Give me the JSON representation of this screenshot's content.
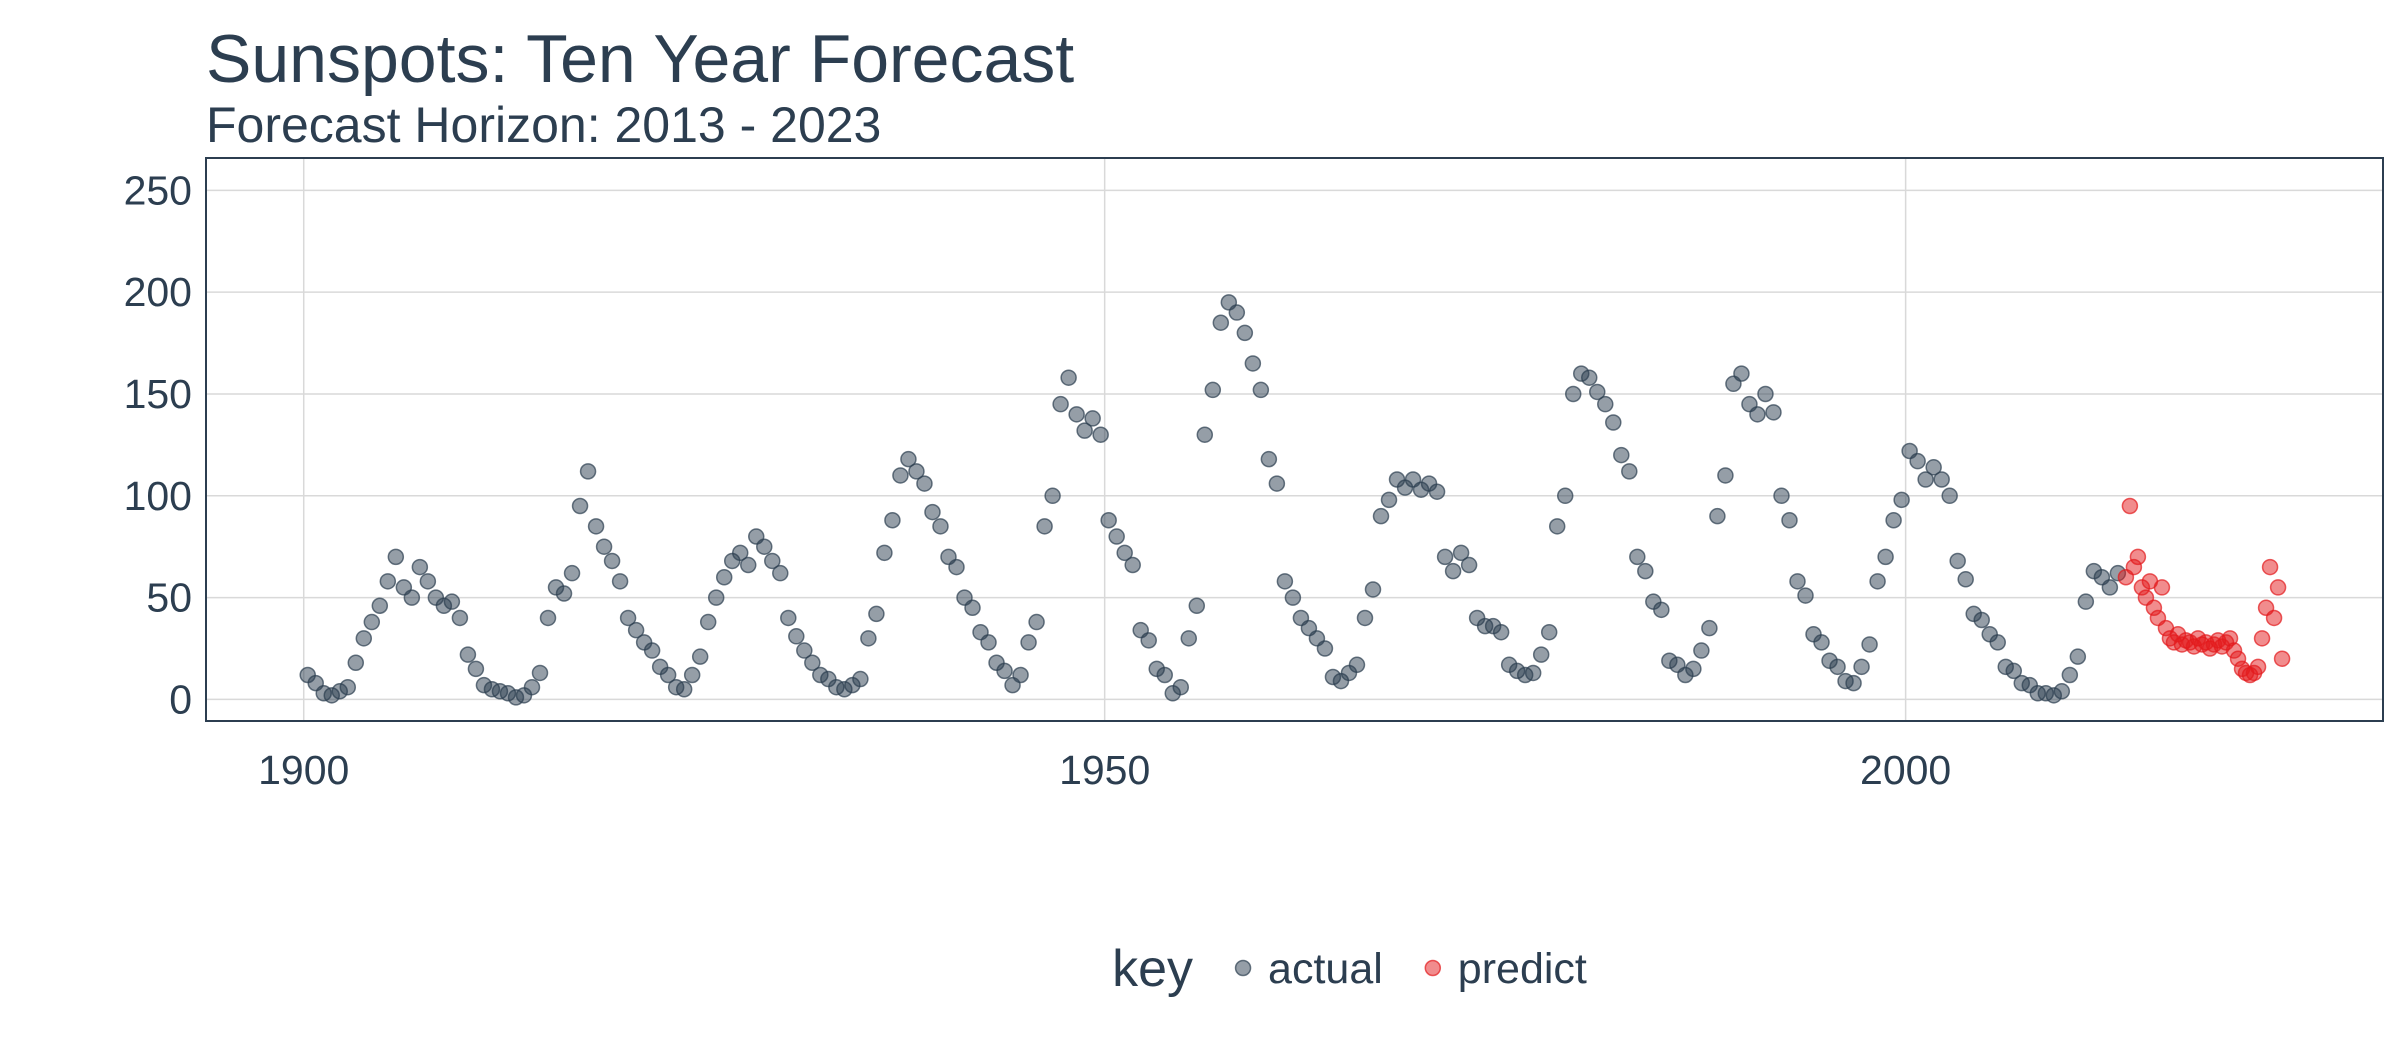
{
  "chart_data": {
    "type": "scatter",
    "title": "Sunspots: Ten Year Forecast",
    "subtitle": "Forecast Horizon: 2013 - 2023",
    "legend_title": "key",
    "legend_position": "bottom",
    "grid": true,
    "xlim": [
      1893.9,
      2029.8
    ],
    "ylim": [
      -10.6,
      265.9
    ],
    "xticks": [
      1900,
      1950,
      2000
    ],
    "yticks": [
      0,
      50,
      100,
      150,
      200,
      250
    ],
    "series": [
      {
        "name": "actual",
        "color": "#2c3e50",
        "x": [
          1900.25,
          1900.75,
          1901.25,
          1901.75,
          1902.25,
          1902.75,
          1903.25,
          1903.75,
          1904.25,
          1904.75,
          1905.25,
          1905.75,
          1906.25,
          1906.75,
          1907.25,
          1907.75,
          1908.25,
          1908.75,
          1909.25,
          1909.75,
          1910.25,
          1910.75,
          1911.25,
          1911.75,
          1912.25,
          1912.75,
          1913.25,
          1913.75,
          1914.25,
          1914.75,
          1915.25,
          1915.75,
          1916.25,
          1916.75,
          1917.25,
          1917.75,
          1918.25,
          1918.75,
          1919.25,
          1919.75,
          1920.25,
          1920.75,
          1921.25,
          1921.75,
          1922.25,
          1922.75,
          1923.25,
          1923.75,
          1924.25,
          1924.75,
          1925.25,
          1925.75,
          1926.25,
          1926.75,
          1927.25,
          1927.75,
          1928.25,
          1928.75,
          1929.25,
          1929.75,
          1930.25,
          1930.75,
          1931.25,
          1931.75,
          1932.25,
          1932.75,
          1933.25,
          1933.75,
          1934.25,
          1934.75,
          1935.25,
          1935.75,
          1936.25,
          1936.75,
          1937.25,
          1937.75,
          1938.25,
          1938.75,
          1939.25,
          1939.75,
          1940.25,
          1940.75,
          1941.25,
          1941.75,
          1942.25,
          1942.75,
          1943.25,
          1943.75,
          1944.25,
          1944.75,
          1945.25,
          1945.75,
          1946.25,
          1946.75,
          1947.25,
          1947.75,
          1948.25,
          1948.75,
          1949.25,
          1949.75,
          1950.25,
          1950.75,
          1951.25,
          1951.75,
          1952.25,
          1952.75,
          1953.25,
          1953.75,
          1954.25,
          1954.75,
          1955.25,
          1955.75,
          1956.25,
          1956.75,
          1957.25,
          1957.75,
          1958.25,
          1958.75,
          1959.25,
          1959.75,
          1960.25,
          1960.75,
          1961.25,
          1961.75,
          1962.25,
          1962.75,
          1963.25,
          1963.75,
          1964.25,
          1964.75,
          1965.25,
          1965.75,
          1966.25,
          1966.75,
          1967.25,
          1967.75,
          1968.25,
          1968.75,
          1969.25,
          1969.75,
          1970.25,
          1970.75,
          1971.25,
          1971.75,
          1972.25,
          1972.75,
          1973.25,
          1973.75,
          1974.25,
          1974.75,
          1975.25,
          1975.75,
          1976.25,
          1976.75,
          1977.25,
          1977.75,
          1978.25,
          1978.75,
          1979.25,
          1979.75,
          1980.25,
          1980.75,
          1981.25,
          1981.75,
          1982.25,
          1982.75,
          1983.25,
          1983.75,
          1984.25,
          1984.75,
          1985.25,
          1985.75,
          1986.25,
          1986.75,
          1987.25,
          1987.75,
          1988.25,
          1988.75,
          1989.25,
          1989.75,
          1990.25,
          1990.75,
          1991.25,
          1991.75,
          1992.25,
          1992.75,
          1993.25,
          1993.75,
          1994.25,
          1994.75,
          1995.25,
          1995.75,
          1996.25,
          1996.75,
          1997.25,
          1997.75,
          1998.25,
          1998.75,
          1999.25,
          1999.75,
          2000.25,
          2000.75,
          2001.25,
          2001.75,
          2002.25,
          2002.75,
          2003.25,
          2003.75,
          2004.25,
          2004.75,
          2005.25,
          2005.75,
          2006.25,
          2006.75,
          2007.25,
          2007.75,
          2008.25,
          2008.75,
          2009.25,
          2009.75,
          2010.25,
          2010.75,
          2011.25,
          2011.75,
          2012.25,
          2012.75,
          2013.25
        ],
        "values": [
          12,
          8,
          3,
          2,
          4,
          6,
          18,
          30,
          38,
          46,
          58,
          70,
          55,
          50,
          65,
          58,
          50,
          46,
          48,
          40,
          22,
          15,
          7,
          5,
          4,
          3,
          1,
          2,
          6,
          13,
          40,
          55,
          52,
          62,
          95,
          112,
          85,
          75,
          68,
          58,
          40,
          34,
          28,
          24,
          16,
          12,
          6,
          5,
          12,
          21,
          38,
          50,
          60,
          68,
          72,
          66,
          80,
          75,
          68,
          62,
          40,
          31,
          24,
          18,
          12,
          10,
          6,
          5,
          7,
          10,
          30,
          42,
          72,
          88,
          110,
          118,
          112,
          106,
          92,
          85,
          70,
          65,
          50,
          45,
          33,
          28,
          18,
          14,
          7,
          12,
          28,
          38,
          85,
          100,
          145,
          158,
          140,
          132,
          138,
          130,
          88,
          80,
          72,
          66,
          34,
          29,
          15,
          12,
          3,
          6,
          30,
          46,
          130,
          152,
          185,
          195,
          190,
          180,
          165,
          152,
          118,
          106,
          58,
          50,
          40,
          35,
          30,
          25,
          11,
          9,
          13,
          17,
          40,
          54,
          90,
          98,
          108,
          104,
          108,
          103,
          106,
          102,
          70,
          63,
          72,
          66,
          40,
          36,
          36,
          33,
          17,
          14,
          12,
          13,
          22,
          33,
          85,
          100,
          150,
          160,
          158,
          151,
          145,
          136,
          120,
          112,
          70,
          63,
          48,
          44,
          19,
          17,
          12,
          15,
          24,
          35,
          90,
          110,
          155,
          160,
          145,
          140,
          150,
          141,
          100,
          88,
          58,
          51,
          32,
          28,
          19,
          16,
          9,
          8,
          16,
          27,
          58,
          70,
          88,
          98,
          122,
          117,
          108,
          114,
          108,
          100,
          68,
          59,
          42,
          39,
          32,
          28,
          16,
          14,
          8,
          7,
          3,
          3,
          2,
          4,
          12,
          21,
          48,
          63,
          60,
          55,
          62
        ]
      },
      {
        "name": "predict",
        "color": "#e31a1c",
        "x": [
          2013.75,
          2014.0,
          2014.25,
          2014.5,
          2014.75,
          2015.0,
          2015.25,
          2015.5,
          2015.75,
          2016.0,
          2016.25,
          2016.5,
          2016.75,
          2017.0,
          2017.25,
          2017.5,
          2017.75,
          2018.0,
          2018.25,
          2018.5,
          2018.75,
          2019.0,
          2019.25,
          2019.5,
          2019.75,
          2020.0,
          2020.25,
          2020.5,
          2020.75,
          2021.0,
          2021.25,
          2021.5,
          2021.75,
          2022.0,
          2022.25,
          2022.5,
          2022.75,
          2023.0,
          2023.25,
          2023.5
        ],
        "values": [
          60,
          95,
          65,
          70,
          55,
          50,
          58,
          45,
          40,
          55,
          35,
          30,
          28,
          32,
          27,
          29,
          28,
          26,
          30,
          27,
          28,
          25,
          27,
          29,
          26,
          28,
          30,
          24,
          20,
          15,
          13,
          12,
          13,
          16,
          30,
          45,
          65,
          40,
          55,
          20
        ]
      }
    ]
  }
}
